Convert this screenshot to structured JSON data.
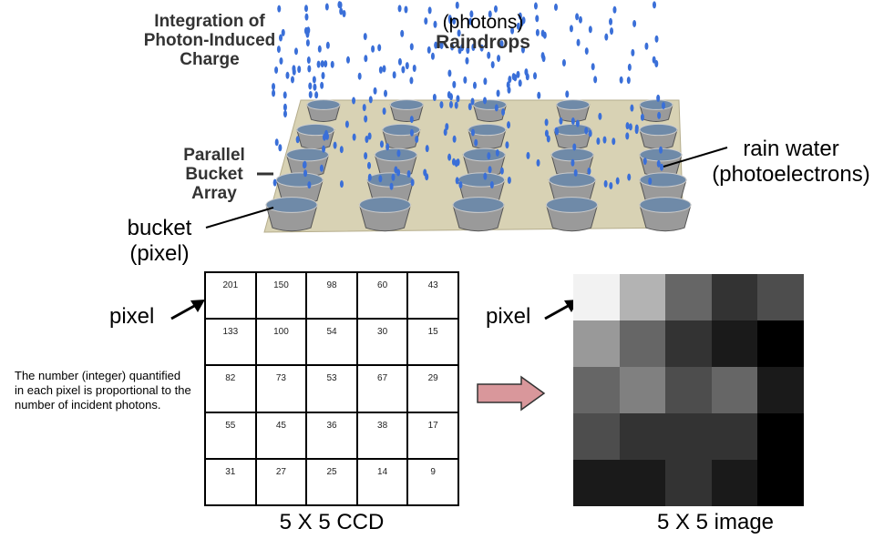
{
  "labels": {
    "integration": [
      "Integration of",
      "Photon-Induced",
      "Charge"
    ],
    "raindrops": [
      "(photons)",
      "Raindrops"
    ],
    "parallel": [
      "Parallel",
      "Bucket",
      "Array"
    ],
    "rain_water": [
      "rain water",
      "(photoelectrons)"
    ],
    "bucket": [
      "bucket",
      "(pixel)"
    ],
    "pixel_left": "pixel",
    "pixel_right": "pixel",
    "description": "The number (integer) quantified in each pixel is proportional to the number of incident photons.",
    "ccd_caption": "5 X 5 CCD",
    "image_caption": "5 X 5 image"
  },
  "ccd_values": [
    [
      201,
      150,
      98,
      60,
      43
    ],
    [
      133,
      100,
      54,
      30,
      15
    ],
    [
      82,
      73,
      53,
      67,
      29
    ],
    [
      55,
      45,
      36,
      38,
      17
    ],
    [
      31,
      27,
      25,
      14,
      9
    ]
  ],
  "image_grays": [
    [
      "#f2f2f2",
      "#b3b3b3",
      "#666666",
      "#333333",
      "#4d4d4d"
    ],
    [
      "#999999",
      "#666666",
      "#333333",
      "#1a1a1a",
      "#000000"
    ],
    [
      "#666666",
      "#808080",
      "#4d4d4d",
      "#666666",
      "#1a1a1a"
    ],
    [
      "#4d4d4d",
      "#333333",
      "#333333",
      "#333333",
      "#000000"
    ],
    [
      "#1a1a1a",
      "#1a1a1a",
      "#333333",
      "#1a1a1a",
      "#000000"
    ]
  ],
  "colors": {
    "raindrop": "#3a6fd8",
    "platform": "#d8d2b4",
    "bucket": "#9a9a9a",
    "arrow_fill": "#d9979b",
    "arrow_stroke": "#333333"
  }
}
